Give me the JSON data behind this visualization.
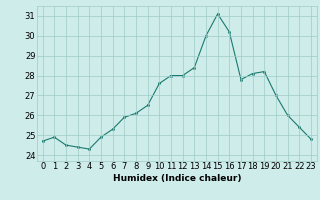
{
  "x": [
    0,
    1,
    2,
    3,
    4,
    5,
    6,
    7,
    8,
    9,
    10,
    11,
    12,
    13,
    14,
    15,
    16,
    17,
    18,
    19,
    20,
    21,
    22,
    23
  ],
  "y": [
    24.7,
    24.9,
    24.5,
    24.4,
    24.3,
    24.9,
    25.3,
    25.9,
    26.1,
    26.5,
    27.6,
    28.0,
    28.0,
    28.4,
    30.0,
    31.1,
    30.2,
    27.8,
    28.1,
    28.2,
    27.0,
    26.0,
    25.4,
    24.8
  ],
  "line_color": "#1a7a6e",
  "marker_color": "#1a7a6e",
  "bg_color": "#ceecea",
  "grid_color": "#9eccc8",
  "xlabel": "Humidex (Indice chaleur)",
  "ylim": [
    23.7,
    31.5
  ],
  "xlim": [
    -0.5,
    23.5
  ],
  "yticks": [
    24,
    25,
    26,
    27,
    28,
    29,
    30,
    31
  ],
  "xticks": [
    0,
    1,
    2,
    3,
    4,
    5,
    6,
    7,
    8,
    9,
    10,
    11,
    12,
    13,
    14,
    15,
    16,
    17,
    18,
    19,
    20,
    21,
    22,
    23
  ],
  "label_fontsize": 6.5,
  "tick_fontsize": 6.0
}
